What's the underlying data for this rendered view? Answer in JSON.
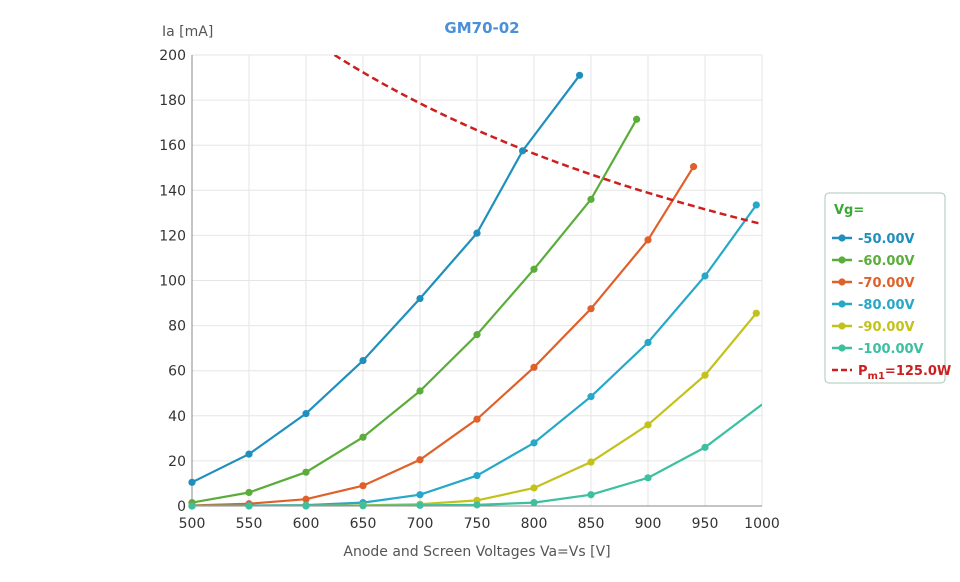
{
  "chart_data": {
    "type": "line",
    "title": "GM70-02",
    "title_color": "#4a90d9",
    "xlabel": "Anode and Screen Voltages Va=Vs [V]",
    "ylabel": "Ia [mA]",
    "xlim": [
      500,
      1000
    ],
    "ylim": [
      0,
      200
    ],
    "xticks": [
      500,
      550,
      600,
      650,
      700,
      750,
      800,
      850,
      900,
      950,
      1000
    ],
    "yticks": [
      0,
      20,
      40,
      60,
      80,
      100,
      120,
      140,
      160,
      180,
      200
    ],
    "grid": true,
    "legend_position": "right",
    "legend": {
      "title": "Vg=",
      "title_color": "#3aaa35",
      "border_color": "#a8c8b8"
    },
    "series": [
      {
        "name": "-50.00V",
        "color": "#1f8fbd",
        "points": [
          [
            500,
            10.5
          ],
          [
            550,
            23
          ],
          [
            600,
            41
          ],
          [
            650,
            64.5
          ],
          [
            700,
            92
          ],
          [
            750,
            121
          ],
          [
            790,
            157.5
          ],
          [
            840,
            191
          ]
        ]
      },
      {
        "name": "-60.00V",
        "color": "#5aad3a",
        "points": [
          [
            500,
            1.5
          ],
          [
            550,
            6
          ],
          [
            600,
            15
          ],
          [
            650,
            30.5
          ],
          [
            700,
            51
          ],
          [
            750,
            76
          ],
          [
            800,
            105
          ],
          [
            850,
            136
          ],
          [
            890,
            171.5
          ]
        ]
      },
      {
        "name": "-70.00V",
        "color": "#e0602a",
        "points": [
          [
            500,
            0.2
          ],
          [
            550,
            1
          ],
          [
            600,
            3
          ],
          [
            650,
            9
          ],
          [
            700,
            20.5
          ],
          [
            750,
            38.5
          ],
          [
            800,
            61.5
          ],
          [
            850,
            87.5
          ],
          [
            900,
            118
          ],
          [
            940,
            150.5
          ]
        ]
      },
      {
        "name": "-80.00V",
        "color": "#27a8c8",
        "points": [
          [
            500,
            0
          ],
          [
            550,
            0.2
          ],
          [
            600,
            0.4
          ],
          [
            650,
            1.5
          ],
          [
            700,
            5
          ],
          [
            750,
            13.5
          ],
          [
            800,
            28
          ],
          [
            850,
            48.5
          ],
          [
            900,
            72.5
          ],
          [
            950,
            102
          ],
          [
            995,
            133.5
          ]
        ]
      },
      {
        "name": "-90.00V",
        "color": "#c2c21a",
        "points": [
          [
            500,
            0
          ],
          [
            550,
            0
          ],
          [
            600,
            0.1
          ],
          [
            650,
            0.3
          ],
          [
            700,
            0.8
          ],
          [
            750,
            2.5
          ],
          [
            800,
            8
          ],
          [
            850,
            19.5
          ],
          [
            900,
            36
          ],
          [
            950,
            58
          ],
          [
            995,
            85.5
          ]
        ]
      },
      {
        "name": "-100.00V",
        "color": "#3cc0a0",
        "points": [
          [
            500,
            0
          ],
          [
            550,
            0
          ],
          [
            600,
            0
          ],
          [
            650,
            0.1
          ],
          [
            700,
            0.3
          ],
          [
            750,
            0.5
          ],
          [
            800,
            1.5
          ],
          [
            850,
            5
          ],
          [
            900,
            12.5
          ],
          [
            950,
            26
          ],
          [
            1000,
            45
          ]
        ],
        "last_marker": false
      },
      {
        "name": "P",
        "subscript": "m1",
        "suffix": "=125.0W",
        "color": "#cc1f1f",
        "dashed": true,
        "curve": "hyperbola",
        "power_w": 125,
        "from_x": 625,
        "to_x": 1000
      }
    ]
  }
}
